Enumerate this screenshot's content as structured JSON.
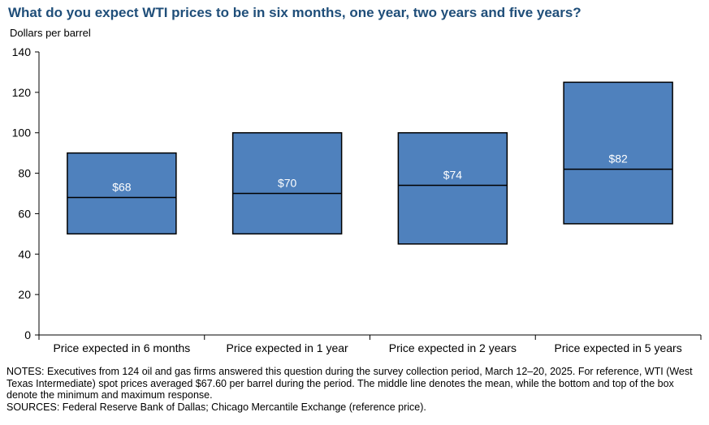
{
  "title": "What do you expect WTI prices to be in six months, one year, two years and five years?",
  "y_unit_label": "Dollars per barrel",
  "chart_data": {
    "type": "box",
    "categories": [
      "Price expected in 6 months",
      "Price expected in 1 year",
      "Price expected in 2 years",
      "Price expected in 5 years"
    ],
    "series": [
      {
        "category": "Price expected in 6 months",
        "min": 50,
        "max": 90,
        "mean": 68,
        "label": "$68"
      },
      {
        "category": "Price expected in 1 year",
        "min": 50,
        "max": 100,
        "mean": 70,
        "label": "$70"
      },
      {
        "category": "Price expected in 2 years",
        "min": 45,
        "max": 100,
        "mean": 74,
        "label": "$74"
      },
      {
        "category": "Price expected in 5 years",
        "min": 55,
        "max": 125,
        "mean": 82,
        "label": "$82"
      }
    ],
    "ylim": [
      0,
      140
    ],
    "yticks": [
      0,
      20,
      40,
      60,
      80,
      100,
      120,
      140
    ],
    "box_color": "#4f81bd",
    "grid": false
  },
  "notes": "NOTES: Executives from 124 oil and gas firms answered this question during the survey collection period, March 12–20, 2025. For reference, WTI (West Texas Intermediate) spot prices averaged $67.60 per barrel during the period. The middle line denotes the mean, while the bottom and top of the box denote the minimum and maximum response.",
  "sources": "SOURCES: Federal Reserve Bank of Dallas; Chicago Mercantile Exchange (reference price)."
}
